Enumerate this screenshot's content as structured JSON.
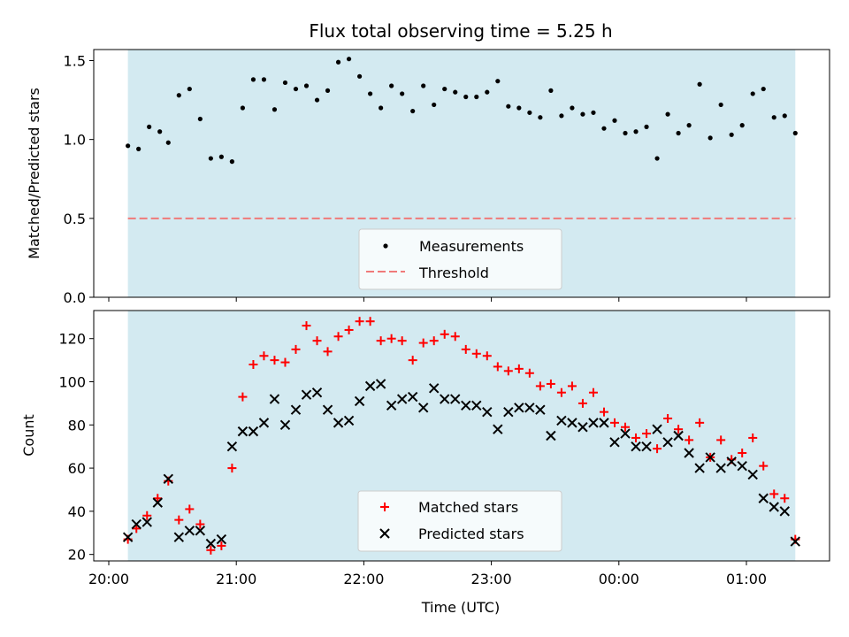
{
  "title": "Flux total observing time = 5.25 h",
  "colors": {
    "shade": "#d3eaf1",
    "shade_edge": "#b9dbe6",
    "threshold": "#f07a7a",
    "matched": "#ff0000",
    "predicted": "#000000",
    "measurement": "#000000"
  },
  "chart_data": [
    {
      "type": "scatter",
      "panel": "top",
      "ylabel": "Matched/Predicted stars",
      "xlim": [
        "20:00",
        "01:40"
      ],
      "ylim": [
        0,
        1.57
      ],
      "yticks": [
        0.0,
        0.5,
        1.0,
        1.5
      ],
      "ytick_labels": [
        "0.0",
        "0.5",
        "1.0",
        "1.5"
      ],
      "xtick_labels_shown": false,
      "shaded_span": [
        "20:09",
        "01:23"
      ],
      "threshold": 0.5,
      "legend": {
        "position": "lower-center",
        "entries": [
          "Measurements",
          "Threshold"
        ]
      },
      "series": [
        {
          "name": "Measurements",
          "marker": "dot",
          "x": [
            "20:09",
            "20:14",
            "20:19",
            "20:24",
            "20:28",
            "20:33",
            "20:38",
            "20:43",
            "20:48",
            "20:53",
            "20:58",
            "21:03",
            "21:08",
            "21:13",
            "21:18",
            "21:23",
            "21:28",
            "21:33",
            "21:38",
            "21:43",
            "21:48",
            "21:53",
            "21:58",
            "22:03",
            "22:08",
            "22:13",
            "22:18",
            "22:23",
            "22:28",
            "22:33",
            "22:38",
            "22:43",
            "22:48",
            "22:53",
            "22:58",
            "23:03",
            "23:08",
            "23:13",
            "23:18",
            "23:23",
            "23:28",
            "23:33",
            "23:38",
            "23:43",
            "23:48",
            "23:53",
            "23:58",
            "00:03",
            "00:08",
            "00:13",
            "00:18",
            "00:23",
            "00:28",
            "00:33",
            "00:38",
            "00:43",
            "00:48",
            "00:53",
            "00:58",
            "01:03",
            "01:08",
            "01:13",
            "01:18",
            "01:23"
          ],
          "y": [
            0.96,
            0.94,
            1.08,
            1.05,
            0.98,
            1.28,
            1.32,
            1.13,
            0.88,
            0.89,
            0.86,
            1.2,
            1.38,
            1.38,
            1.19,
            1.36,
            1.32,
            1.34,
            1.25,
            1.31,
            1.49,
            1.51,
            1.4,
            1.29,
            1.2,
            1.34,
            1.29,
            1.18,
            1.34,
            1.22,
            1.32,
            1.3,
            1.27,
            1.27,
            1.3,
            1.37,
            1.21,
            1.2,
            1.17,
            1.14,
            1.31,
            1.15,
            1.2,
            1.16,
            1.17,
            1.07,
            1.12,
            1.04,
            1.05,
            1.08,
            0.88,
            1.16,
            1.04,
            1.09,
            1.35,
            1.01,
            1.22,
            1.03,
            1.09,
            1.29,
            1.32,
            1.14,
            1.15,
            1.04
          ]
        }
      ]
    },
    {
      "type": "scatter",
      "panel": "bottom",
      "xlabel": "Time (UTC)",
      "ylabel": "Count",
      "xlim": [
        "20:00",
        "01:40"
      ],
      "ylim": [
        17,
        133
      ],
      "yticks": [
        20,
        40,
        60,
        80,
        100,
        120
      ],
      "ytick_labels": [
        "20",
        "40",
        "60",
        "80",
        "100",
        "120"
      ],
      "xticks": [
        "20:00",
        "21:00",
        "22:00",
        "23:00",
        "00:00",
        "01:00"
      ],
      "xtick_labels": [
        "20:00",
        "21:00",
        "22:00",
        "23:00",
        "00:00",
        "01:00"
      ],
      "shaded_span": [
        "20:09",
        "01:23"
      ],
      "legend": {
        "position": "lower-center",
        "entries": [
          "Matched stars",
          "Predicted stars"
        ]
      },
      "series": [
        {
          "name": "Matched stars",
          "marker": "plus",
          "x": [
            "20:09",
            "20:13",
            "20:18",
            "20:23",
            "20:28",
            "20:33",
            "20:38",
            "20:43",
            "20:48",
            "20:53",
            "20:58",
            "21:03",
            "21:08",
            "21:13",
            "21:18",
            "21:23",
            "21:28",
            "21:33",
            "21:38",
            "21:43",
            "21:48",
            "21:53",
            "21:58",
            "22:03",
            "22:08",
            "22:13",
            "22:18",
            "22:23",
            "22:28",
            "22:33",
            "22:38",
            "22:43",
            "22:48",
            "22:53",
            "22:58",
            "23:03",
            "23:08",
            "23:13",
            "23:18",
            "23:23",
            "23:28",
            "23:33",
            "23:38",
            "23:43",
            "23:48",
            "23:53",
            "23:58",
            "00:03",
            "00:08",
            "00:13",
            "00:18",
            "00:23",
            "00:28",
            "00:33",
            "00:38",
            "00:43",
            "00:48",
            "00:53",
            "00:58",
            "01:03",
            "01:08",
            "01:13",
            "01:18",
            "01:23"
          ],
          "y": [
            27,
            32,
            38,
            46,
            54,
            36,
            41,
            34,
            22,
            24,
            60,
            93,
            108,
            112,
            110,
            109,
            115,
            126,
            119,
            114,
            121,
            124,
            128,
            128,
            119,
            120,
            119,
            110,
            118,
            119,
            122,
            121,
            115,
            113,
            112,
            107,
            105,
            106,
            104,
            98,
            99,
            95,
            98,
            90,
            95,
            86,
            81,
            79,
            74,
            76,
            69,
            83,
            78,
            73,
            81,
            65,
            73,
            64,
            67,
            74,
            61,
            48,
            46,
            27
          ]
        },
        {
          "name": "Predicted stars",
          "marker": "x",
          "x": [
            "20:09",
            "20:13",
            "20:18",
            "20:23",
            "20:28",
            "20:33",
            "20:38",
            "20:43",
            "20:48",
            "20:53",
            "20:58",
            "21:03",
            "21:08",
            "21:13",
            "21:18",
            "21:23",
            "21:28",
            "21:33",
            "21:38",
            "21:43",
            "21:48",
            "21:53",
            "21:58",
            "22:03",
            "22:08",
            "22:13",
            "22:18",
            "22:23",
            "22:28",
            "22:33",
            "22:38",
            "22:43",
            "22:48",
            "22:53",
            "22:58",
            "23:03",
            "23:08",
            "23:13",
            "23:18",
            "23:23",
            "23:28",
            "23:33",
            "23:38",
            "23:43",
            "23:48",
            "23:53",
            "23:58",
            "00:03",
            "00:08",
            "00:13",
            "00:18",
            "00:23",
            "00:28",
            "00:33",
            "00:38",
            "00:43",
            "00:48",
            "00:53",
            "00:58",
            "01:03",
            "01:08",
            "01:13",
            "01:18",
            "01:23"
          ],
          "y": [
            28,
            34,
            35,
            44,
            55,
            28,
            31,
            31,
            25,
            27,
            70,
            77,
            77,
            81,
            92,
            80,
            87,
            94,
            95,
            87,
            81,
            82,
            91,
            98,
            99,
            89,
            92,
            93,
            88,
            97,
            92,
            92,
            89,
            89,
            86,
            78,
            86,
            88,
            88,
            87,
            75,
            82,
            81,
            79,
            81,
            81,
            72,
            76,
            70,
            70,
            78,
            72,
            75,
            67,
            60,
            65,
            60,
            63,
            61,
            57,
            46,
            42,
            40,
            26
          ]
        }
      ]
    }
  ]
}
